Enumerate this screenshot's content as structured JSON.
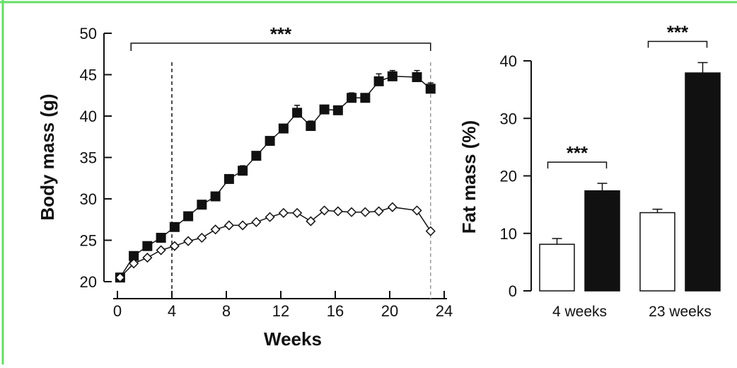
{
  "colors": {
    "frame": "#66dd66",
    "ink": "#111111",
    "open_fill": "#ffffff",
    "filled": "#111111",
    "ref_line_right": "#999999"
  },
  "chart_data": [
    {
      "type": "line",
      "xlabel": "Weeks",
      "ylabel": "Body mass (g)",
      "xlim": [
        0,
        24
      ],
      "ylim": [
        20,
        50
      ],
      "xticks": [
        "0",
        "4",
        "8",
        "12",
        "16",
        "20",
        "24"
      ],
      "yticks": [
        "20",
        "25",
        "30",
        "35",
        "40",
        "45",
        "50"
      ],
      "vertical_reference_lines_x": [
        4,
        23
      ],
      "significance": {
        "label": "***",
        "from_x": 1,
        "to_x": 23
      },
      "series": [
        {
          "marker": "filled-square",
          "x": [
            0.2,
            1.2,
            2.2,
            3.2,
            4.2,
            5.2,
            6.2,
            7.2,
            8.2,
            9.2,
            10.2,
            11.2,
            12.2,
            13.2,
            14.2,
            15.2,
            16.2,
            17.2,
            18.2,
            19.2,
            20.2,
            22.0,
            23.0
          ],
          "y": [
            20.5,
            23.1,
            24.3,
            25.3,
            26.6,
            27.9,
            29.3,
            30.3,
            32.4,
            33.4,
            35.2,
            37.0,
            38.5,
            40.4,
            38.8,
            40.8,
            40.7,
            42.2,
            42.2,
            44.2,
            44.8,
            44.7,
            43.3
          ],
          "error": [
            0,
            0,
            0,
            0,
            0,
            0,
            0,
            0,
            0.4,
            0.6,
            0,
            0,
            0,
            0.9,
            0.6,
            0.4,
            0,
            0.6,
            0.5,
            0.9,
            0.7,
            0.8,
            0.7
          ]
        },
        {
          "marker": "open-diamond",
          "x": [
            0.2,
            1.2,
            2.2,
            3.2,
            4.2,
            5.2,
            6.2,
            7.2,
            8.2,
            9.2,
            10.2,
            11.2,
            12.2,
            13.2,
            14.2,
            15.2,
            16.2,
            17.2,
            18.2,
            19.2,
            20.2,
            22.0,
            23.0
          ],
          "y": [
            20.5,
            22.2,
            22.9,
            23.8,
            24.3,
            24.9,
            25.3,
            26.3,
            26.8,
            26.8,
            27.2,
            27.8,
            28.3,
            28.3,
            27.3,
            28.6,
            28.5,
            28.4,
            28.4,
            28.5,
            29.0,
            28.6,
            26.1
          ],
          "error": [
            0,
            0,
            0,
            0,
            0,
            0,
            0,
            0,
            0,
            0,
            0,
            0,
            0,
            0,
            0,
            0,
            0,
            0,
            0,
            0,
            0,
            0,
            0
          ]
        }
      ]
    },
    {
      "type": "bar",
      "ylabel": "Fat mass (%)",
      "ylim": [
        0,
        40
      ],
      "yticks": [
        "0",
        "10",
        "20",
        "30",
        "40"
      ],
      "categories": [
        "4 weeks",
        "23 weeks"
      ],
      "series": [
        {
          "fill": "open",
          "values": [
            8.1,
            13.6
          ],
          "error": [
            1.0,
            0.6
          ]
        },
        {
          "fill": "filled",
          "values": [
            17.4,
            37.9
          ],
          "error": [
            1.3,
            1.8
          ]
        }
      ],
      "significance": [
        "***",
        "***"
      ]
    }
  ]
}
